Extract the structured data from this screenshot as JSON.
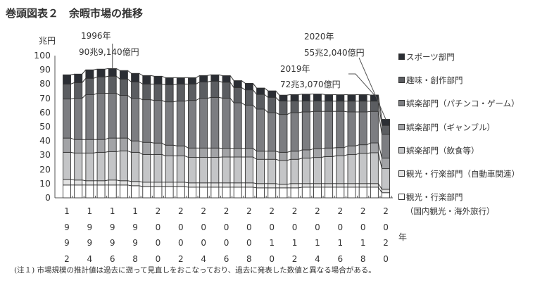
{
  "title": "巻頭図表２　余暇市場の推移",
  "note": "(注１) 市場規模の推計値は過去に遡って見直しをおこなっており、過去に発表した数値と異なる場合がある。",
  "chart_data": {
    "type": "bar",
    "stacked": true,
    "title": "巻頭図表２　余暇市場の推移",
    "ylabel": "兆円",
    "xlabel": "年",
    "ylim": [
      0,
      100
    ],
    "yticks": [
      0,
      10,
      20,
      30,
      40,
      50,
      60,
      70,
      80,
      90,
      100
    ],
    "categories": [
      1992,
      1993,
      1994,
      1995,
      1996,
      1997,
      1998,
      1999,
      2000,
      2001,
      2002,
      2003,
      2004,
      2005,
      2006,
      2007,
      2008,
      2009,
      2010,
      2011,
      2012,
      2013,
      2014,
      2015,
      2016,
      2017,
      2018,
      2019,
      2020
    ],
    "xtick_labels": [
      "1992",
      "1994",
      "1996",
      "1998",
      "2000",
      "2002",
      "2004",
      "2006",
      "2008",
      "2010",
      "2012",
      "2014",
      "2016",
      "2018",
      "2020"
    ],
    "series": [
      {
        "name": "観光・行楽部門（国内観光・海外旅行）",
        "legend_lines": [
          "観光・行楽部門",
          "（国内観光・海外旅行）"
        ],
        "color": "#ffffff",
        "values": [
          9,
          9,
          9,
          9,
          9,
          9,
          8.5,
          8,
          8,
          8,
          8,
          7.5,
          7.5,
          7.5,
          7.5,
          7.5,
          7.5,
          7,
          7,
          7,
          7,
          7.5,
          7.5,
          7.5,
          7.5,
          7.5,
          7.5,
          7.5,
          3.6
        ]
      },
      {
        "name": "観光・行楽部門（自動車関連）",
        "legend_lines": [
          "観光・行楽部門（自動車関連）"
        ],
        "color": "#e2e2e2",
        "values": [
          4,
          3.5,
          3,
          3,
          3.5,
          3,
          3,
          3,
          3,
          3,
          3,
          3,
          3,
          3,
          3,
          3,
          3,
          3,
          3,
          2.5,
          3,
          2.5,
          2.5,
          2.5,
          2.5,
          2.5,
          2.5,
          2.5,
          2.4
        ]
      },
      {
        "name": "娯楽部門（飲食等）",
        "legend_lines": [
          "娯楽部門（飲食等）"
        ],
        "color": "#c4c5c7",
        "values": [
          19,
          19,
          19.5,
          20,
          20,
          21,
          20.5,
          19.5,
          19.5,
          18.5,
          18.5,
          18,
          18,
          18,
          18.2,
          18.2,
          18.2,
          17.1,
          17.1,
          16.8,
          17.1,
          17.9,
          18.4,
          19,
          19.6,
          20.4,
          21.2,
          21.7,
          14.5
        ]
      },
      {
        "name": "娯楽部門（ギャンブル）",
        "legend_lines": [
          "娯楽部門（ギャンブル）"
        ],
        "color": "#a2a3a6",
        "values": [
          10,
          9.5,
          9.5,
          9,
          9.5,
          9,
          8,
          8.5,
          8,
          7.5,
          7,
          6.5,
          6.5,
          6.5,
          6.1,
          6.1,
          6.1,
          5.7,
          5.7,
          5.7,
          5.7,
          5.8,
          6.1,
          6,
          5.7,
          6.1,
          6.1,
          6.9,
          7.4
        ]
      },
      {
        "name": "娯楽部門（パチンコ・ゲーム）",
        "legend_lines": [
          "娯楽部門（パチンコ・ゲーム）"
        ],
        "color": "#7c7d81",
        "values": [
          27.5,
          29,
          31.5,
          32.5,
          31.5,
          30,
          30,
          30,
          30,
          30.5,
          31.5,
          33.5,
          35,
          35.6,
          35.3,
          32,
          30.4,
          29.6,
          27.1,
          26.6,
          27.1,
          26.7,
          26.3,
          25.8,
          25.5,
          23.9,
          23.1,
          22.2,
          16.8
        ]
      },
      {
        "name": "趣味・創作部門",
        "legend_lines": [
          "趣味・創作部門"
        ],
        "color": "#5b5d61",
        "values": [
          10.5,
          11,
          11.5,
          11.5,
          12,
          11.5,
          11.5,
          11,
          11.5,
          12,
          12,
          11.5,
          11.5,
          11.4,
          11.2,
          10.7,
          10.7,
          10.3,
          10.7,
          9.5,
          8.2,
          7.7,
          7.3,
          7.2,
          7.2,
          7.6,
          7.6,
          7.2,
          6.2
        ]
      },
      {
        "name": "スポーツ部門",
        "legend_lines": [
          "スポーツ部門"
        ],
        "color": "#2b2e34",
        "values": [
          6.5,
          6,
          6,
          5.5,
          5.4,
          6,
          6,
          6,
          5.5,
          5,
          4.5,
          4.5,
          4.5,
          4.5,
          4.6,
          4.9,
          4.6,
          4.5,
          4.6,
          4.1,
          4.5,
          4.8,
          4.9,
          4.6,
          4.5,
          4.5,
          4.6,
          4.3,
          4.3
        ]
      }
    ],
    "annotations": [
      {
        "year": 1996,
        "label_year": "1996年",
        "label_value": "90兆9,140億円"
      },
      {
        "year": 2019,
        "label_year": "2019年",
        "label_value": "72兆3,070億円"
      },
      {
        "year": 2020,
        "label_year": "2020年",
        "label_value": "55兆2,040億円"
      }
    ],
    "legend_position": "right"
  }
}
